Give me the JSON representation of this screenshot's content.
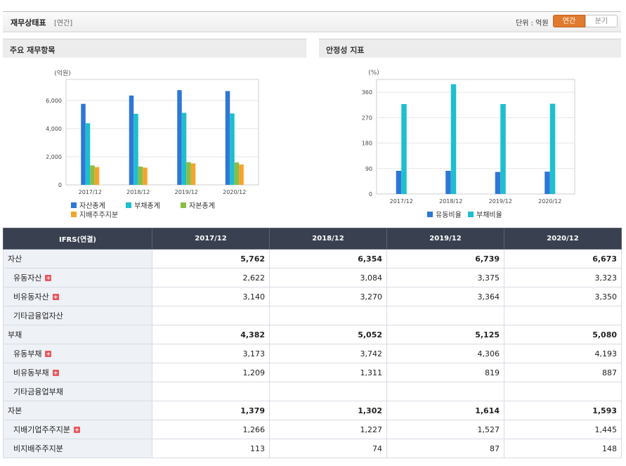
{
  "header": {
    "title": "재무상태표",
    "period_tag": "[연간]",
    "unit_label": "단위 : 억원",
    "toggle_annual": "연간",
    "toggle_quarterly": "분기"
  },
  "panels": {
    "left_title": "주요 재무항목",
    "right_title": "안정성 지표"
  },
  "colors": {
    "series_blue": "#2f77d6",
    "series_cyan": "#1dbfcf",
    "series_green": "#89be46",
    "series_orange": "#f5a42b"
  },
  "chart_data": [
    {
      "type": "bar",
      "title": "주요 재무항목",
      "ylabel": "(억원)",
      "categories": [
        "2017/12",
        "2018/12",
        "2019/12",
        "2020/12"
      ],
      "ylim": [
        0,
        7500
      ],
      "yticks": [
        0,
        2000,
        4000,
        6000
      ],
      "ytick_labels": [
        "0",
        "2,000",
        "4,000",
        "6,000"
      ],
      "series": [
        {
          "name": "자산총계",
          "color": "#2f77d6",
          "values": [
            5762,
            6354,
            6739,
            6673
          ]
        },
        {
          "name": "부채총계",
          "color": "#1dbfcf",
          "values": [
            4382,
            5052,
            5125,
            5080
          ]
        },
        {
          "name": "자본총계",
          "color": "#89be46",
          "values": [
            1379,
            1302,
            1614,
            1593
          ]
        },
        {
          "name": "지배주주지분",
          "color": "#f5a42b",
          "values": [
            1266,
            1227,
            1527,
            1445
          ]
        }
      ],
      "legend": "bottom"
    },
    {
      "type": "bar",
      "title": "안정성 지표",
      "ylabel": "(%)",
      "categories": [
        "2017/12",
        "2018/12",
        "2019/12",
        "2020/12"
      ],
      "ylim": [
        0,
        405
      ],
      "yticks": [
        0,
        90,
        180,
        270,
        360
      ],
      "ytick_labels": [
        "0",
        "90",
        "180",
        "270",
        "360"
      ],
      "series": [
        {
          "name": "유동비율",
          "color": "#2f77d6",
          "values": [
            82,
            82,
            78,
            79
          ]
        },
        {
          "name": "부채비율",
          "color": "#1dbfcf",
          "values": [
            318,
            388,
            318,
            319
          ]
        }
      ],
      "legend": "bottom"
    }
  ],
  "table": {
    "header": [
      "IFRS(연결)",
      "2017/12",
      "2018/12",
      "2019/12",
      "2020/12"
    ],
    "rows": [
      {
        "label": "자산",
        "values": [
          "5,762",
          "6,354",
          "6,739",
          "6,673"
        ],
        "major": true,
        "expand": false
      },
      {
        "label": "유동자산",
        "values": [
          "2,622",
          "3,084",
          "3,375",
          "3,323"
        ],
        "major": false,
        "expand": true
      },
      {
        "label": "비유동자산",
        "values": [
          "3,140",
          "3,270",
          "3,364",
          "3,350"
        ],
        "major": false,
        "expand": true
      },
      {
        "label": "기타금융업자산",
        "values": [
          "",
          "",
          "",
          ""
        ],
        "major": false,
        "expand": false
      },
      {
        "label": "부채",
        "values": [
          "4,382",
          "5,052",
          "5,125",
          "5,080"
        ],
        "major": true,
        "expand": false
      },
      {
        "label": "유동부채",
        "values": [
          "3,173",
          "3,742",
          "4,306",
          "4,193"
        ],
        "major": false,
        "expand": true
      },
      {
        "label": "비유동부채",
        "values": [
          "1,209",
          "1,311",
          "819",
          "887"
        ],
        "major": false,
        "expand": true
      },
      {
        "label": "기타금융업부채",
        "values": [
          "",
          "",
          "",
          ""
        ],
        "major": false,
        "expand": false
      },
      {
        "label": "자본",
        "values": [
          "1,379",
          "1,302",
          "1,614",
          "1,593"
        ],
        "major": true,
        "expand": false
      },
      {
        "label": "지배기업주주지분",
        "values": [
          "1,266",
          "1,227",
          "1,527",
          "1,445"
        ],
        "major": false,
        "expand": true
      },
      {
        "label": "비지배주주지분",
        "values": [
          "113",
          "74",
          "87",
          "148"
        ],
        "major": false,
        "expand": false
      }
    ]
  }
}
